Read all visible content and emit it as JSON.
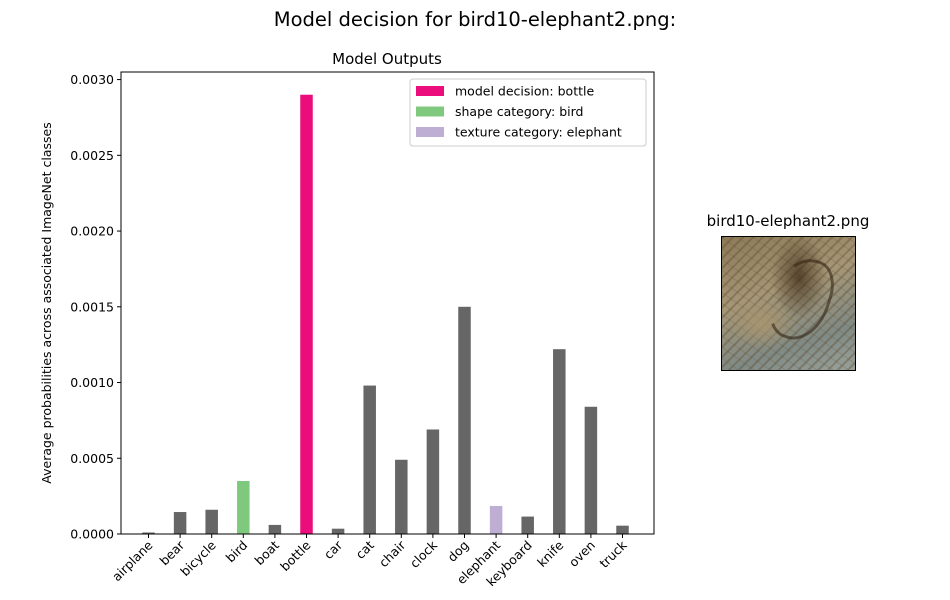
{
  "figure": {
    "suptitle": "Model decision for bird10-elephant2.png:",
    "image_title": "bird10-elephant2.png",
    "image_description": "stylized texture image"
  },
  "chart_data": {
    "type": "bar",
    "title": "Model Outputs",
    "xlabel": "",
    "ylabel": "Average probabilities across associated ImageNet classes",
    "ylim": [
      0,
      0.00305
    ],
    "yticks": [
      "0.0000",
      "0.0005",
      "0.0010",
      "0.0015",
      "0.0020",
      "0.0025",
      "0.0030"
    ],
    "categories": [
      "airplane",
      "bear",
      "bicycle",
      "bird",
      "boat",
      "bottle",
      "car",
      "cat",
      "chair",
      "clock",
      "dog",
      "elephant",
      "keyboard",
      "knife",
      "oven",
      "truck"
    ],
    "values": [
      1e-05,
      0.000145,
      0.00016,
      0.00035,
      6e-05,
      0.0029,
      3.5e-05,
      0.00098,
      0.00049,
      0.00069,
      0.0015,
      0.000185,
      0.000115,
      0.00122,
      0.00084,
      5.5e-05
    ],
    "bar_roles": [
      "other",
      "other",
      "other",
      "shape",
      "other",
      "decision",
      "other",
      "other",
      "other",
      "other",
      "other",
      "texture",
      "other",
      "other",
      "other",
      "other"
    ],
    "grid": false,
    "legend_position": "top-right",
    "legend": [
      {
        "role": "decision",
        "label": "model decision: bottle"
      },
      {
        "role": "shape",
        "label": "shape category: bird"
      },
      {
        "role": "texture",
        "label": "texture category: elephant"
      }
    ],
    "colors": {
      "decision": "#eb0d7c",
      "shape": "#7fc97f",
      "texture": "#beaed4",
      "other": "#666666"
    }
  }
}
